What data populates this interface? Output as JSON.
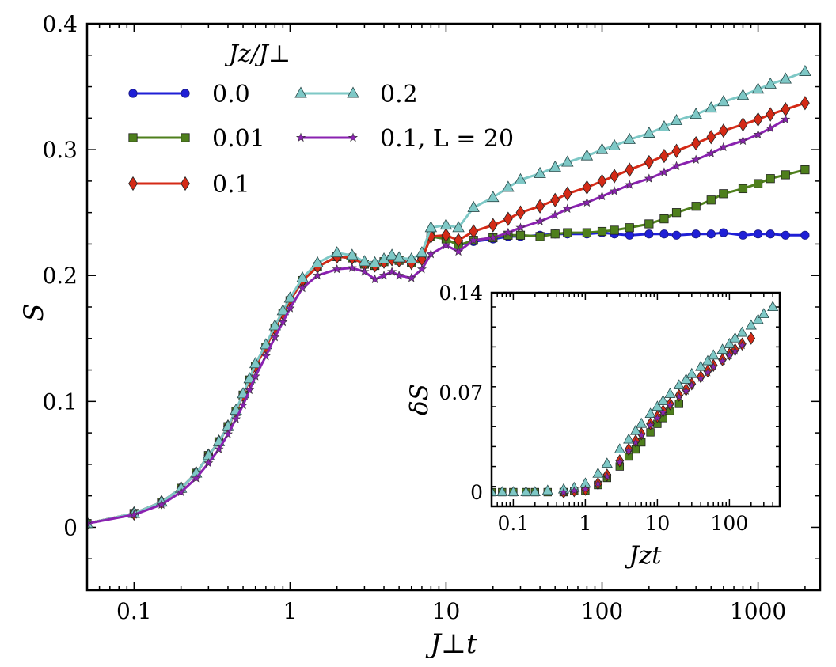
{
  "chart_data": [
    {
      "type": "line",
      "xscale": "log",
      "xlim": [
        0.05,
        2500
      ],
      "ylim": [
        -0.05,
        0.4
      ],
      "xlabel": "J⊥t",
      "ylabel": "S",
      "xticks": [
        0.1,
        1,
        10,
        100,
        1000
      ],
      "xtick_labels": [
        "0.1",
        "1",
        "10",
        "100",
        "1000"
      ],
      "yticks": [
        0,
        0.1,
        0.2,
        0.3,
        0.4
      ],
      "ytick_labels": [
        "0",
        "0.1",
        "0.2",
        "0.3",
        "0.4"
      ],
      "legend_title": "Jz/J⊥",
      "legend_position": "top-left",
      "series": [
        {
          "name": "0.0",
          "color": "#1f1fd6",
          "marker": "circle",
          "x": [
            0.05,
            0.1,
            0.15,
            0.2,
            0.25,
            0.3,
            0.35,
            0.4,
            0.45,
            0.5,
            0.55,
            0.6,
            0.7,
            0.8,
            0.9,
            1,
            1.2,
            1.5,
            2,
            2.5,
            3,
            3.5,
            4,
            4.5,
            5,
            6,
            7,
            8,
            10,
            12,
            15,
            20,
            25,
            30,
            40,
            50,
            60,
            80,
            100,
            120,
            150,
            200,
            250,
            300,
            400,
            500,
            600,
            800,
            1000,
            1200,
            1500,
            2000
          ],
          "y": [
            0.003,
            0.011,
            0.02,
            0.031,
            0.043,
            0.057,
            0.068,
            0.08,
            0.092,
            0.105,
            0.117,
            0.128,
            0.143,
            0.158,
            0.17,
            0.18,
            0.196,
            0.207,
            0.215,
            0.214,
            0.209,
            0.208,
            0.211,
            0.213,
            0.212,
            0.21,
            0.213,
            0.231,
            0.229,
            0.224,
            0.227,
            0.229,
            0.231,
            0.231,
            0.232,
            0.233,
            0.233,
            0.233,
            0.234,
            0.233,
            0.232,
            0.233,
            0.233,
            0.232,
            0.233,
            0.233,
            0.234,
            0.232,
            0.233,
            0.233,
            0.232,
            0.232
          ]
        },
        {
          "name": "0.01",
          "color": "#4e7f1c",
          "marker": "square",
          "x": [
            0.05,
            0.1,
            0.15,
            0.2,
            0.25,
            0.3,
            0.35,
            0.4,
            0.45,
            0.5,
            0.55,
            0.6,
            0.7,
            0.8,
            0.9,
            1,
            1.2,
            1.5,
            2,
            2.5,
            3,
            3.5,
            4,
            4.5,
            5,
            6,
            7,
            8,
            10,
            12,
            15,
            20,
            25,
            30,
            40,
            50,
            60,
            80,
            100,
            120,
            150,
            200,
            250,
            300,
            400,
            500,
            600,
            800,
            1000,
            1200,
            1500,
            2000
          ],
          "y": [
            0.003,
            0.011,
            0.02,
            0.031,
            0.043,
            0.057,
            0.068,
            0.08,
            0.092,
            0.105,
            0.117,
            0.128,
            0.143,
            0.158,
            0.17,
            0.18,
            0.196,
            0.207,
            0.215,
            0.214,
            0.209,
            0.208,
            0.211,
            0.213,
            0.212,
            0.21,
            0.213,
            0.231,
            0.229,
            0.224,
            0.228,
            0.23,
            0.232,
            0.232,
            0.231,
            0.233,
            0.234,
            0.234,
            0.235,
            0.236,
            0.238,
            0.241,
            0.245,
            0.25,
            0.255,
            0.26,
            0.265,
            0.269,
            0.273,
            0.277,
            0.28,
            0.284
          ]
        },
        {
          "name": "0.1",
          "color": "#d42a16",
          "marker": "diamond",
          "x": [
            0.05,
            0.1,
            0.15,
            0.2,
            0.25,
            0.3,
            0.35,
            0.4,
            0.45,
            0.5,
            0.55,
            0.6,
            0.7,
            0.8,
            0.9,
            1,
            1.2,
            1.5,
            2,
            2.5,
            3,
            3.5,
            4,
            4.5,
            5,
            6,
            7,
            8,
            10,
            12,
            15,
            20,
            25,
            30,
            40,
            50,
            60,
            80,
            100,
            120,
            150,
            200,
            250,
            300,
            400,
            500,
            600,
            800,
            1000,
            1200,
            1500,
            2000
          ],
          "y": [
            0.003,
            0.011,
            0.02,
            0.031,
            0.043,
            0.057,
            0.068,
            0.08,
            0.092,
            0.105,
            0.117,
            0.128,
            0.143,
            0.158,
            0.17,
            0.18,
            0.196,
            0.207,
            0.215,
            0.214,
            0.209,
            0.208,
            0.211,
            0.213,
            0.212,
            0.21,
            0.213,
            0.231,
            0.232,
            0.228,
            0.235,
            0.24,
            0.245,
            0.25,
            0.255,
            0.26,
            0.265,
            0.27,
            0.275,
            0.279,
            0.284,
            0.29,
            0.295,
            0.299,
            0.305,
            0.31,
            0.315,
            0.32,
            0.324,
            0.328,
            0.332,
            0.337
          ]
        },
        {
          "name": "0.2",
          "color": "#7ec8c6",
          "marker": "triangle",
          "x": [
            0.05,
            0.1,
            0.15,
            0.2,
            0.25,
            0.3,
            0.35,
            0.4,
            0.45,
            0.5,
            0.55,
            0.6,
            0.7,
            0.8,
            0.9,
            1,
            1.2,
            1.5,
            2,
            2.5,
            3,
            3.5,
            4,
            4.5,
            5,
            6,
            7,
            8,
            10,
            12,
            15,
            20,
            25,
            30,
            40,
            50,
            60,
            80,
            100,
            120,
            150,
            200,
            250,
            300,
            400,
            500,
            600,
            800,
            1000,
            1200,
            1500,
            2000
          ],
          "y": [
            0.003,
            0.011,
            0.02,
            0.031,
            0.043,
            0.057,
            0.068,
            0.08,
            0.093,
            0.106,
            0.118,
            0.13,
            0.145,
            0.16,
            0.172,
            0.182,
            0.198,
            0.21,
            0.218,
            0.216,
            0.211,
            0.21,
            0.213,
            0.216,
            0.214,
            0.213,
            0.218,
            0.238,
            0.24,
            0.238,
            0.254,
            0.262,
            0.27,
            0.276,
            0.281,
            0.286,
            0.29,
            0.295,
            0.3,
            0.303,
            0.308,
            0.313,
            0.318,
            0.323,
            0.328,
            0.333,
            0.338,
            0.343,
            0.348,
            0.352,
            0.356,
            0.362
          ]
        },
        {
          "name": "0.1, L = 20",
          "color": "#8a22b0",
          "marker": "star",
          "x": [
            0.05,
            0.1,
            0.15,
            0.2,
            0.25,
            0.3,
            0.35,
            0.4,
            0.45,
            0.5,
            0.55,
            0.6,
            0.7,
            0.8,
            0.9,
            1,
            1.2,
            1.5,
            2,
            2.5,
            3,
            3.5,
            4,
            4.5,
            5,
            6,
            7,
            8,
            10,
            12,
            15,
            20,
            25,
            30,
            40,
            50,
            60,
            80,
            100,
            120,
            150,
            200,
            250,
            300,
            400,
            500,
            600,
            800,
            1000,
            1200,
            1500
          ],
          "y": [
            0.003,
            0.01,
            0.018,
            0.028,
            0.039,
            0.051,
            0.062,
            0.074,
            0.086,
            0.097,
            0.109,
            0.12,
            0.136,
            0.151,
            0.163,
            0.174,
            0.19,
            0.2,
            0.205,
            0.206,
            0.203,
            0.197,
            0.2,
            0.203,
            0.2,
            0.198,
            0.205,
            0.217,
            0.224,
            0.219,
            0.228,
            0.23,
            0.234,
            0.238,
            0.243,
            0.248,
            0.253,
            0.258,
            0.263,
            0.267,
            0.272,
            0.277,
            0.282,
            0.287,
            0.292,
            0.297,
            0.302,
            0.307,
            0.312,
            0.317,
            0.324
          ]
        }
      ]
    },
    {
      "type": "scatter",
      "xscale": "log",
      "xlim": [
        0.05,
        500
      ],
      "ylim": [
        -0.01,
        0.14
      ],
      "xlabel": "Jzt",
      "ylabel": "δS",
      "xticks": [
        0.1,
        1,
        10,
        100
      ],
      "xtick_labels": [
        "0.1",
        "1",
        "10",
        "100"
      ],
      "yticks": [
        0,
        0.07,
        0.14
      ],
      "ytick_labels": [
        "0",
        "0.07",
        "0.14"
      ],
      "series": [
        {
          "name": "0.01",
          "color": "#4e7f1c",
          "marker": "square",
          "x": [
            0.05,
            0.07,
            0.1,
            0.15,
            0.2,
            0.3,
            0.5,
            0.7,
            1,
            1.5,
            2,
            3,
            4,
            5,
            6,
            8,
            10,
            12,
            15,
            20
          ],
          "y": [
            0.0,
            0.0,
            0.0,
            0.0,
            0.0,
            0.0,
            0.0,
            0.001,
            0.001,
            0.005,
            0.01,
            0.018,
            0.025,
            0.03,
            0.035,
            0.042,
            0.048,
            0.052,
            0.057,
            0.062
          ]
        },
        {
          "name": "0.1",
          "color": "#d42a16",
          "marker": "diamond",
          "x": [
            0.5,
            0.7,
            1,
            1.5,
            2,
            3,
            4,
            5,
            6,
            8,
            10,
            12,
            15,
            20,
            25,
            30,
            40,
            50,
            60,
            80,
            100,
            120,
            150,
            200
          ],
          "y": [
            0.0,
            0.001,
            0.002,
            0.006,
            0.012,
            0.022,
            0.03,
            0.036,
            0.041,
            0.048,
            0.053,
            0.057,
            0.062,
            0.068,
            0.072,
            0.076,
            0.081,
            0.085,
            0.089,
            0.093,
            0.097,
            0.1,
            0.104,
            0.108
          ]
        },
        {
          "name": "0.2",
          "color": "#7ec8c6",
          "marker": "triangle",
          "x": [
            0.05,
            0.07,
            0.1,
            0.15,
            0.2,
            0.3,
            0.5,
            0.7,
            1,
            1.5,
            2,
            3,
            4,
            5,
            6,
            8,
            10,
            12,
            15,
            20,
            25,
            30,
            40,
            50,
            60,
            80,
            100,
            120,
            150,
            200,
            250,
            300,
            400
          ],
          "y": [
            0.0,
            0.0,
            0.0,
            0.0,
            0.0,
            0.001,
            0.002,
            0.003,
            0.006,
            0.013,
            0.02,
            0.03,
            0.037,
            0.043,
            0.048,
            0.055,
            0.06,
            0.064,
            0.069,
            0.075,
            0.079,
            0.083,
            0.088,
            0.092,
            0.096,
            0.1,
            0.104,
            0.108,
            0.112,
            0.117,
            0.121,
            0.125,
            0.13
          ]
        },
        {
          "name": "0.1, L = 20",
          "color": "#8a22b0",
          "marker": "star",
          "x": [
            0.5,
            0.7,
            1,
            1.5,
            2,
            3,
            4,
            5,
            6,
            8,
            10,
            12,
            15,
            20,
            25,
            30,
            40,
            50,
            60,
            80,
            100,
            120,
            150
          ],
          "y": [
            0.0,
            0.001,
            0.002,
            0.006,
            0.011,
            0.021,
            0.029,
            0.035,
            0.04,
            0.047,
            0.052,
            0.056,
            0.061,
            0.067,
            0.071,
            0.075,
            0.08,
            0.084,
            0.088,
            0.092,
            0.096,
            0.099,
            0.103
          ]
        }
      ]
    }
  ]
}
